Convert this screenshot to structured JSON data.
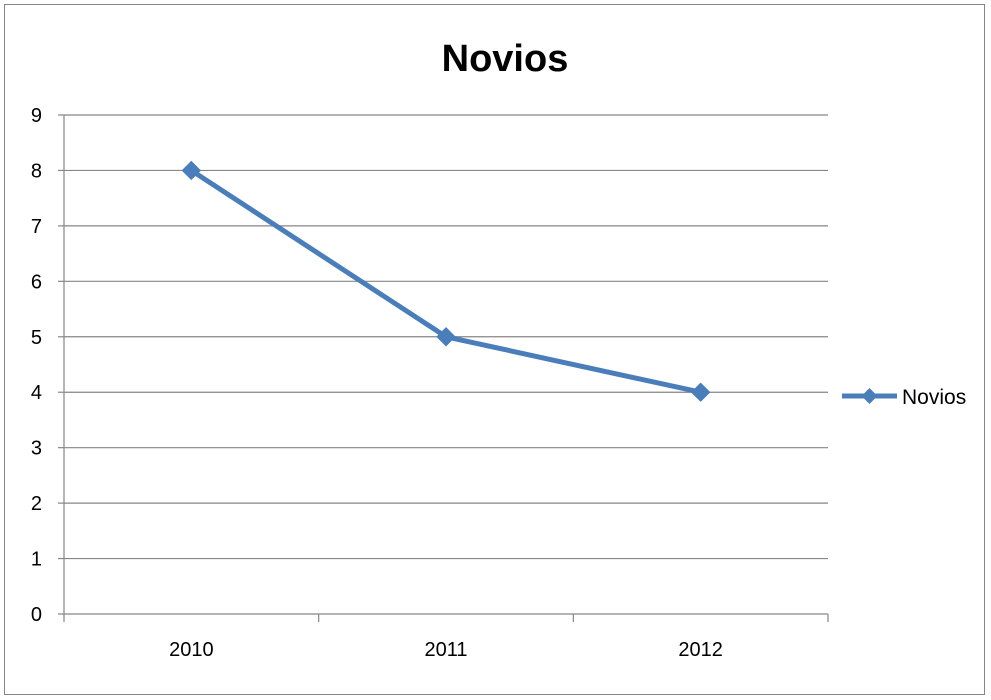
{
  "chart_data": {
    "type": "line",
    "title": "Novios",
    "xlabel": "",
    "ylabel": "",
    "categories": [
      "2010",
      "2011",
      "2012"
    ],
    "series": [
      {
        "name": "Novios",
        "values": [
          8,
          5,
          4
        ]
      }
    ],
    "ylim": [
      0,
      9
    ],
    "yticks": [
      "0",
      "1",
      "2",
      "3",
      "4",
      "5",
      "6",
      "7",
      "8",
      "9"
    ],
    "grid": true,
    "legend_position": "right",
    "marker": "diamond",
    "colors": {
      "series": "#4a7ebb",
      "grid": "#868686",
      "axis": "#868686"
    }
  }
}
